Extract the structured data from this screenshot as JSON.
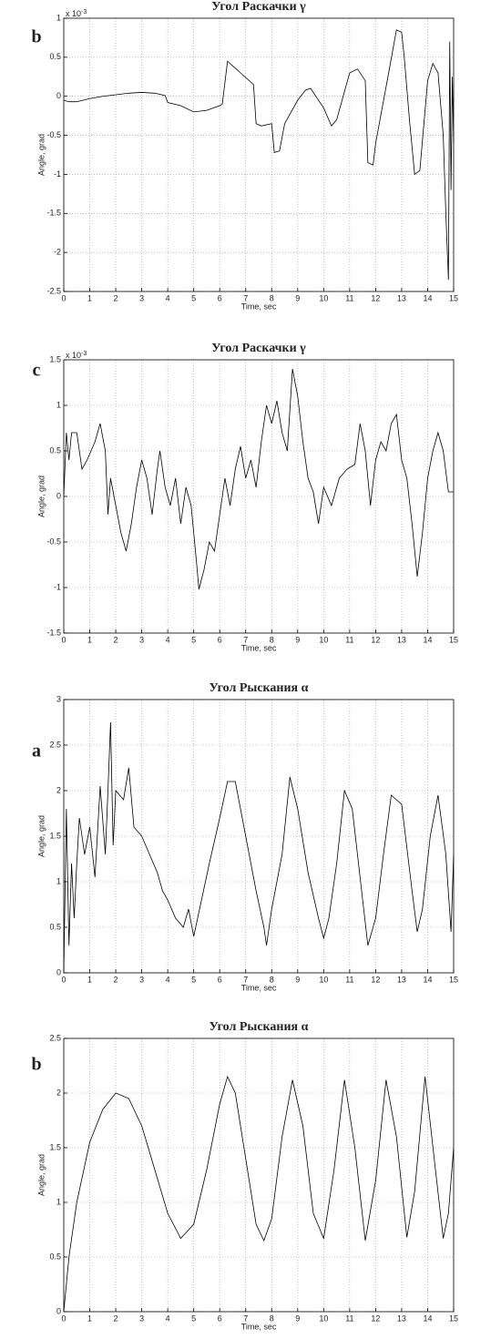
{
  "chart_data": [
    {
      "type": "line",
      "title": "Угол Раскачки γ",
      "panel_label": "b",
      "xlabel": "Time, sec",
      "ylabel": "Angle, grad",
      "y_multiplier": "x 10",
      "y_exponent": "-3",
      "color": "#000000",
      "grid": true,
      "xlim": [
        0,
        15
      ],
      "xticks": [
        0,
        1,
        2,
        3,
        4,
        5,
        6,
        7,
        8,
        9,
        10,
        11,
        12,
        13,
        14,
        15
      ],
      "ylim": [
        -2.5,
        1
      ],
      "yticks": [
        -2.5,
        -2,
        -1.5,
        -1,
        -0.5,
        0,
        0.5,
        1
      ],
      "x": [
        0,
        0.2,
        0.5,
        1,
        1.5,
        2,
        2.5,
        3,
        3.5,
        3.9,
        4,
        4.5,
        5,
        5.5,
        6,
        6.1,
        6.3,
        6.8,
        7.3,
        7.4,
        7.6,
        8,
        8.1,
        8.3,
        8.5,
        9,
        9.3,
        9.5,
        10,
        10.3,
        10.5,
        11,
        11.3,
        11.6,
        11.7,
        11.9,
        12,
        12.5,
        12.8,
        13,
        13.1,
        13.3,
        13.5,
        13.7,
        14,
        14.2,
        14.4,
        14.6,
        14.7,
        14.8,
        14.85,
        14.9,
        14.95,
        15
      ],
      "values": [
        -0.05,
        -0.07,
        -0.07,
        -0.03,
        0,
        0.02,
        0.04,
        0.05,
        0.04,
        0.01,
        -0.08,
        -0.12,
        -0.2,
        -0.18,
        -0.12,
        -0.1,
        0.45,
        0.3,
        0.15,
        -0.35,
        -0.38,
        -0.35,
        -0.72,
        -0.7,
        -0.35,
        -0.05,
        0.08,
        0.1,
        -0.15,
        -0.38,
        -0.3,
        0.3,
        0.35,
        0.2,
        -0.85,
        -0.88,
        -0.6,
        0.3,
        0.85,
        0.82,
        0.5,
        -0.3,
        -1,
        -0.95,
        0.2,
        0.42,
        0.3,
        -0.5,
        -1.5,
        -2.35,
        0.7,
        -1.2,
        0.25,
        -0.6
      ]
    },
    {
      "type": "line",
      "title": "Угол Раскачки γ",
      "panel_label": "c",
      "xlabel": "Time, sec",
      "ylabel": "Angle, grad",
      "y_multiplier": "x 10",
      "y_exponent": "-3",
      "color": "#000000",
      "grid": true,
      "xlim": [
        0,
        15
      ],
      "xticks": [
        0,
        1,
        2,
        3,
        4,
        5,
        6,
        7,
        8,
        9,
        10,
        11,
        12,
        13,
        14,
        15
      ],
      "ylim": [
        -1.5,
        1.5
      ],
      "yticks": [
        -1.5,
        -1,
        -0.5,
        0,
        0.5,
        1,
        1.5
      ],
      "x": [
        0,
        0.1,
        0.2,
        0.3,
        0.5,
        0.7,
        0.9,
        1.2,
        1.4,
        1.6,
        1.7,
        1.8,
        2,
        2.2,
        2.4,
        2.6,
        2.8,
        3,
        3.2,
        3.4,
        3.6,
        3.7,
        3.9,
        4.1,
        4.3,
        4.5,
        4.7,
        4.9,
        5.1,
        5.2,
        5.4,
        5.6,
        5.8,
        6,
        6.2,
        6.4,
        6.6,
        6.8,
        7,
        7.2,
        7.4,
        7.6,
        7.8,
        8,
        8.2,
        8.4,
        8.6,
        8.8,
        9,
        9.2,
        9.4,
        9.6,
        9.8,
        10,
        10.3,
        10.6,
        10.9,
        11.2,
        11.4,
        11.6,
        11.8,
        12,
        12.2,
        12.4,
        12.6,
        12.8,
        13,
        13.2,
        13.4,
        13.6,
        13.8,
        14,
        14.2,
        14.4,
        14.6,
        14.8,
        15
      ],
      "values": [
        0,
        0.7,
        0.4,
        0.7,
        0.7,
        0.3,
        0.4,
        0.6,
        0.8,
        0.5,
        -0.2,
        0.2,
        -0.1,
        -0.4,
        -0.6,
        -0.3,
        0.1,
        0.4,
        0.2,
        -0.2,
        0.3,
        0.5,
        0.1,
        -0.1,
        0.2,
        -0.3,
        0.1,
        -0.1,
        -0.7,
        -1.02,
        -0.8,
        -0.5,
        -0.6,
        -0.2,
        0.2,
        -0.1,
        0.3,
        0.55,
        0.2,
        0.4,
        0.1,
        0.6,
        1,
        0.8,
        1.05,
        0.7,
        0.5,
        1.4,
        1.1,
        0.6,
        0.2,
        0.05,
        -0.3,
        0.1,
        -0.1,
        0.2,
        0.3,
        0.35,
        0.8,
        0.5,
        -0.1,
        0.4,
        0.6,
        0.5,
        0.8,
        0.9,
        0.4,
        0.2,
        -0.3,
        -0.88,
        -0.4,
        0.2,
        0.5,
        0.7,
        0.5,
        0.05,
        0.05
      ]
    },
    {
      "type": "line",
      "title": "Угол Рыскания α",
      "panel_label": "a",
      "xlabel": "Time, sec",
      "ylabel": "Angle, grad",
      "color": "#000000",
      "grid": true,
      "xlim": [
        0,
        15
      ],
      "xticks": [
        0,
        1,
        2,
        3,
        4,
        5,
        6,
        7,
        8,
        9,
        10,
        11,
        12,
        13,
        14,
        15
      ],
      "ylim": [
        0,
        3
      ],
      "yticks": [
        0,
        0.5,
        1,
        1.5,
        2,
        2.5,
        3
      ],
      "x": [
        0,
        0.1,
        0.2,
        0.3,
        0.4,
        0.5,
        0.6,
        0.8,
        1,
        1.2,
        1.4,
        1.6,
        1.7,
        1.8,
        1.9,
        2,
        2.3,
        2.5,
        2.7,
        3,
        3.3,
        3.6,
        3.8,
        4,
        4.3,
        4.6,
        4.8,
        5,
        5.3,
        5.6,
        6,
        6.3,
        6.6,
        7,
        7.4,
        7.7,
        7.8,
        8,
        8.4,
        8.7,
        9,
        9.4,
        9.8,
        10,
        10.2,
        10.5,
        10.8,
        11.1,
        11.5,
        11.7,
        12,
        12.3,
        12.6,
        13,
        13.4,
        13.6,
        13.8,
        14.1,
        14.4,
        14.7,
        14.9,
        15
      ],
      "values": [
        0,
        1.8,
        0.3,
        1.2,
        0.6,
        1.2,
        1.7,
        1.3,
        1.6,
        1.05,
        2.05,
        1.3,
        2,
        2.75,
        1.4,
        2,
        1.9,
        2.25,
        1.6,
        1.5,
        1.3,
        1.1,
        0.9,
        0.8,
        0.6,
        0.5,
        0.7,
        0.4,
        0.8,
        1.2,
        1.7,
        2.1,
        2.1,
        1.5,
        0.9,
        0.5,
        0.3,
        0.7,
        1.3,
        2.15,
        1.8,
        1.1,
        0.6,
        0.38,
        0.6,
        1.2,
        2,
        1.8,
        0.8,
        0.3,
        0.6,
        1.3,
        1.95,
        1.85,
        0.9,
        0.45,
        0.7,
        1.5,
        1.95,
        1.3,
        0.45,
        1.3
      ]
    },
    {
      "type": "line",
      "title": "Угол Рыскания α",
      "panel_label": "b",
      "xlabel": "Time, sec",
      "ylabel": "Angle, grad",
      "color": "#000000",
      "grid": true,
      "xlim": [
        0,
        15
      ],
      "xticks": [
        0,
        1,
        2,
        3,
        4,
        5,
        6,
        7,
        8,
        9,
        10,
        11,
        12,
        13,
        14,
        15
      ],
      "ylim": [
        0,
        2.5
      ],
      "yticks": [
        0,
        0.5,
        1,
        1.5,
        2,
        2.5
      ],
      "x": [
        0,
        0.2,
        0.5,
        1,
        1.5,
        2,
        2.5,
        3,
        3.5,
        4,
        4.5,
        5,
        5.5,
        6,
        6.3,
        6.6,
        7,
        7.4,
        7.7,
        8,
        8.4,
        8.8,
        9.2,
        9.6,
        10,
        10.4,
        10.8,
        11.2,
        11.6,
        12,
        12.4,
        12.8,
        13.2,
        13.5,
        13.9,
        14.3,
        14.6,
        14.8,
        15
      ],
      "values": [
        0,
        0.5,
        1,
        1.55,
        1.85,
        2,
        1.95,
        1.7,
        1.3,
        0.9,
        0.67,
        0.8,
        1.3,
        1.9,
        2.15,
        2,
        1.4,
        0.8,
        0.65,
        0.85,
        1.6,
        2.12,
        1.7,
        0.9,
        0.67,
        1.3,
        2.12,
        1.5,
        0.65,
        1.2,
        2.12,
        1.6,
        0.68,
        1.1,
        2.15,
        1.3,
        0.67,
        0.9,
        1.5
      ]
    }
  ]
}
